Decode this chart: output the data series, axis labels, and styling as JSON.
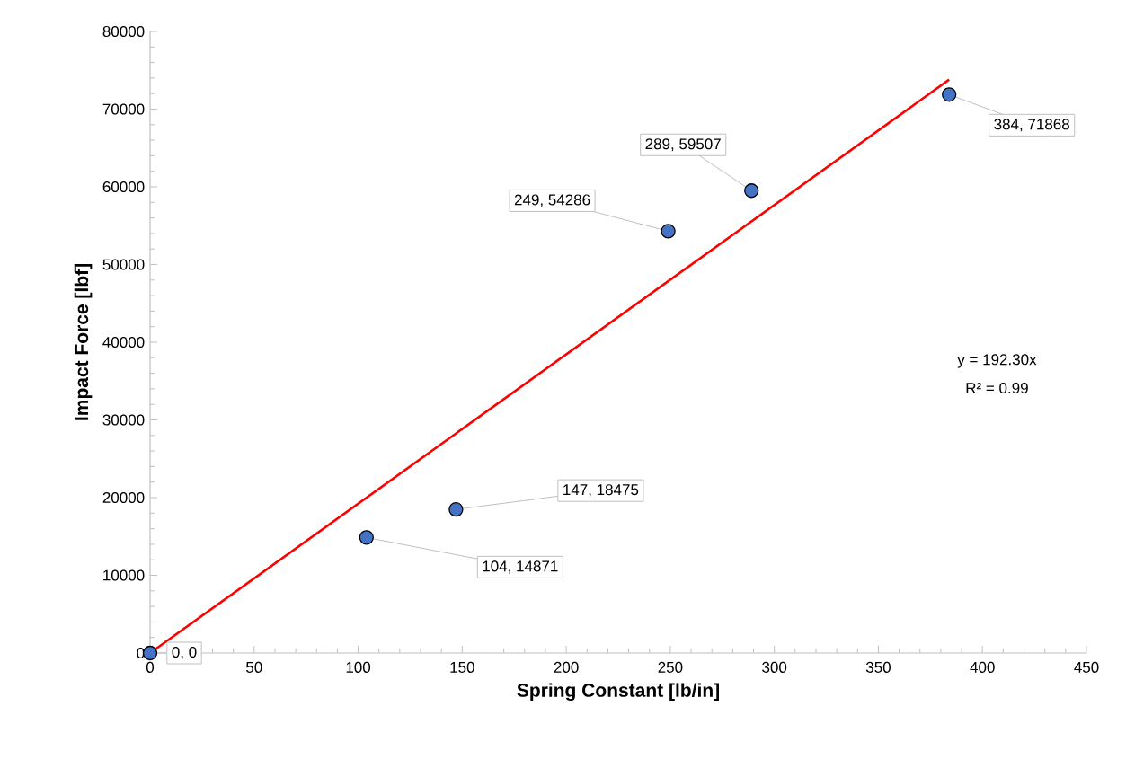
{
  "chart_data": {
    "type": "scatter",
    "xlabel": "Spring Constant [lb/in]",
    "ylabel": "Impact Force [lbf]",
    "xlim": [
      0,
      450
    ],
    "xticks": [
      0,
      50,
      100,
      150,
      200,
      250,
      300,
      350,
      400,
      450
    ],
    "ylim": [
      0,
      80000
    ],
    "yticks": [
      0,
      10000,
      20000,
      30000,
      40000,
      50000,
      60000,
      70000,
      80000
    ],
    "grid": false,
    "series": [
      {
        "color": "#4472c4",
        "marker": "circle",
        "x": [
          0,
          104,
          147,
          249,
          289,
          384
        ],
        "values": [
          0,
          14871,
          18475,
          54286,
          59507,
          71868
        ],
        "value_labels": [
          "0, 0",
          "104, 14871",
          "147, 18475",
          "249, 54286",
          "289, 59507",
          "384, 71868"
        ]
      },
      {
        "type": "line",
        "color": "#ff0000",
        "marker": "none",
        "x": [
          0,
          384
        ],
        "values": [
          0,
          73800
        ]
      }
    ],
    "annotations": [
      "y = 192.30x",
      "R² = 0.99"
    ]
  }
}
